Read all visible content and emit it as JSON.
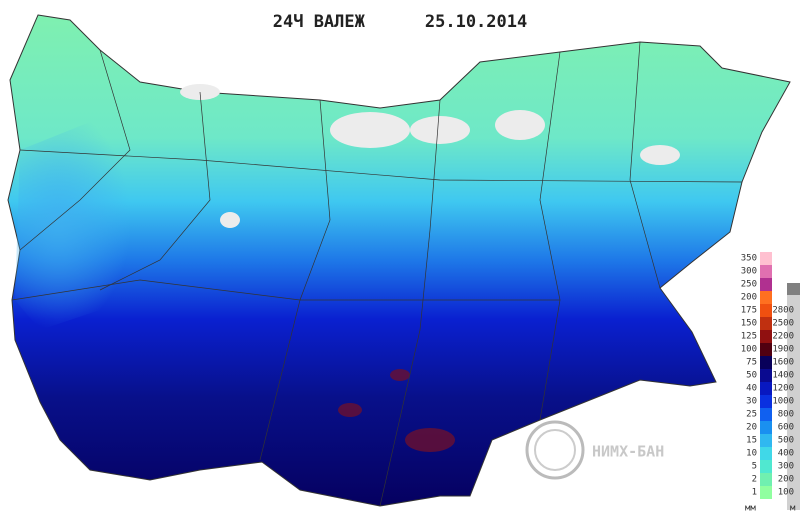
{
  "header": {
    "title": "24Ч ВАЛЕЖ",
    "date": "25.10.2014"
  },
  "legend": {
    "precipitation_unit": "мм",
    "height_unit": "м",
    "precipitation_levels": [
      "350",
      "300",
      "250",
      "200",
      "175",
      "150",
      "125",
      "100",
      "75",
      "50",
      "40",
      "30",
      "25",
      "20",
      "15",
      "10",
      "5",
      "2",
      "1"
    ],
    "height_levels": [
      "2800",
      "2500",
      "2200",
      "1900",
      "1600",
      "1400",
      "1200",
      "1000",
      "800",
      "600",
      "500",
      "400",
      "300",
      "200",
      "100"
    ]
  },
  "logo": {
    "text": "НИМХ-БАН"
  }
}
